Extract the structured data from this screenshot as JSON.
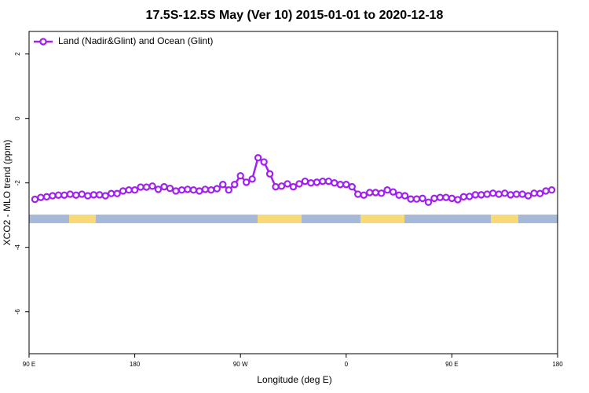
{
  "chart_data": {
    "type": "line",
    "title": "17.5S-12.5S May (Ver 10)   2015-01-01 to 2020-12-18",
    "x_label": "Longitude (deg E)",
    "y_label": "XCO2 - MLO trend (ppm)",
    "xlim": [
      90,
      540
    ],
    "xticks": [
      {
        "value": 90,
        "label": "90 E"
      },
      180,
      {
        "value": 270,
        "label": "90 W"
      },
      {
        "value": 360,
        "label": "0"
      },
      {
        "value": 450,
        "label": "90 E"
      },
      {
        "value": 540,
        "label": "180"
      }
    ],
    "ylim": [
      -7.3,
      2.7
    ],
    "yticks": [
      2,
      0,
      -2,
      -4,
      -6
    ],
    "legend": "top-left",
    "x": [
      95,
      100,
      105,
      110,
      115,
      120,
      125,
      130,
      135,
      140,
      145,
      150,
      155,
      160,
      165,
      170,
      175,
      180,
      185,
      190,
      195,
      200,
      205,
      210,
      215,
      220,
      225,
      230,
      235,
      240,
      245,
      250,
      255,
      260,
      265,
      270,
      275,
      280,
      285,
      290,
      295,
      300,
      305,
      310,
      315,
      320,
      325,
      330,
      335,
      340,
      345,
      350,
      355,
      360,
      365,
      370,
      375,
      380,
      385,
      390,
      395,
      400,
      405,
      410,
      415,
      420,
      425,
      430,
      435,
      440,
      445,
      450,
      455,
      460,
      465,
      470,
      475,
      480,
      485,
      490,
      495,
      500,
      505,
      510,
      515,
      520,
      525,
      530,
      535
    ],
    "series": [
      {
        "name": "Land (Nadir&Glint) and Ocean (Glint)",
        "color": "#a020f0",
        "values": [
          -2.51,
          -2.45,
          -2.43,
          -2.4,
          -2.38,
          -2.38,
          -2.35,
          -2.38,
          -2.35,
          -2.4,
          -2.37,
          -2.37,
          -2.4,
          -2.33,
          -2.33,
          -2.25,
          -2.22,
          -2.22,
          -2.13,
          -2.13,
          -2.1,
          -2.2,
          -2.12,
          -2.17,
          -2.25,
          -2.22,
          -2.2,
          -2.22,
          -2.25,
          -2.2,
          -2.22,
          -2.18,
          -2.05,
          -2.22,
          -2.05,
          -1.78,
          -1.98,
          -1.88,
          -1.22,
          -1.35,
          -1.72,
          -2.12,
          -2.1,
          -2.03,
          -2.12,
          -2.03,
          -1.95,
          -2.0,
          -1.98,
          -1.95,
          -1.95,
          -2.0,
          -2.05,
          -2.05,
          -2.12,
          -2.35,
          -2.38,
          -2.3,
          -2.3,
          -2.32,
          -2.22,
          -2.28,
          -2.38,
          -2.4,
          -2.5,
          -2.5,
          -2.48,
          -2.6,
          -2.48,
          -2.45,
          -2.45,
          -2.48,
          -2.52,
          -2.43,
          -2.42,
          -2.37,
          -2.37,
          -2.35,
          -2.32,
          -2.35,
          -2.32,
          -2.37,
          -2.35,
          -2.35,
          -2.4,
          -2.32,
          -2.33,
          -2.25,
          -2.22
        ]
      }
    ]
  }
}
